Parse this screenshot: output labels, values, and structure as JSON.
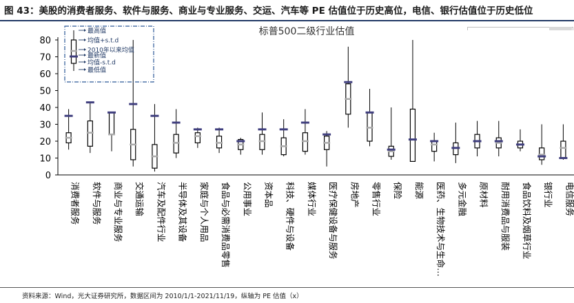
{
  "figure_title": "图 43：美股的消费者服务、软件与服务、商业与专业服务、交运、汽车等 PE 估值位于历史高位，电信、银行估值位于历史低位",
  "source_note": "资料来源：Wind，光大证券研究所，数据区间为 2010/1/1-2021/11/19，纵轴为 PE 估值（x）",
  "chart_data": {
    "type": "boxplot",
    "title": "标普500二级行业估值",
    "xlabel": "",
    "ylabel": "",
    "ylim": [
      0,
      85
    ],
    "yticks": [
      0,
      10,
      20,
      30,
      40,
      50,
      60,
      70,
      80
    ],
    "grid": false,
    "legend": {
      "placement": "top-left",
      "entries": [
        "最高值",
        "均值+s.t.d",
        "2010年以来均值",
        "最新值",
        "均值-s.t.d",
        "最低值"
      ]
    },
    "categories": [
      "消费者服务",
      "软件与服务",
      "商业与专业服务",
      "交通运输",
      "汽车及配件行业",
      "半导体及其设备",
      "家庭与个人用品",
      "食品与必需消费品零售",
      "公用事业",
      "资本品",
      "科技、硬件与设备",
      "媒体行业",
      "医疗保健设备与服务",
      "房地产",
      "零售行业",
      "保险",
      "能源",
      "医药、生物技术与生命…",
      "多元金融",
      "原材料",
      "耐用消费品与服装",
      "食品饮料及烟草行业",
      "银行业",
      "电信服务"
    ],
    "series": [
      {
        "name": "最高值",
        "values": [
          39,
          43,
          37,
          80,
          42,
          39,
          28,
          28,
          22,
          37,
          33,
          39,
          26,
          76,
          51,
          40,
          80,
          25,
          31,
          32,
          32,
          27,
          30,
          30
        ]
      },
      {
        "name": "均值+s.t.d",
        "values": [
          25,
          32,
          37,
          27,
          18,
          24,
          25,
          23,
          21,
          24,
          22,
          25,
          23,
          54,
          37,
          17,
          39,
          20,
          19,
          24,
          22,
          20,
          16,
          20
        ]
      },
      {
        "name": "2010年以来均值",
        "values": [
          22,
          25,
          24,
          18,
          11,
          19,
          23,
          19,
          18,
          20,
          17,
          20,
          19,
          45,
          28,
          14,
          21,
          18,
          16,
          20,
          19,
          18,
          12,
          16
        ]
      },
      {
        "name": "最新值",
        "values": [
          35,
          43,
          37,
          42,
          35,
          31,
          27,
          27,
          20,
          27,
          27,
          31,
          24,
          55,
          37,
          15,
          21,
          20,
          16,
          20,
          20,
          18,
          11,
          10
        ]
      },
      {
        "name": "均值-s.t.d",
        "values": [
          19,
          17,
          24,
          9,
          4,
          13,
          19,
          16,
          15,
          15,
          12,
          14,
          15,
          36,
          20,
          11,
          8,
          14,
          12,
          16,
          16,
          16,
          9,
          10
        ]
      },
      {
        "name": "最低值",
        "values": [
          15,
          13,
          14,
          5,
          2,
          10,
          16,
          13,
          12,
          12,
          11,
          12,
          5,
          28,
          17,
          9,
          8,
          8,
          7,
          11,
          11,
          14,
          6,
          9
        ]
      }
    ]
  },
  "colors": {
    "box_stroke": "#000000",
    "whisker": "#000000",
    "mean_tick": "#aaaaaa",
    "latest_tick": "#3f3e7e",
    "legend_border": "#2b5797",
    "legend_text": "#1f3864",
    "axis": "#000000"
  }
}
